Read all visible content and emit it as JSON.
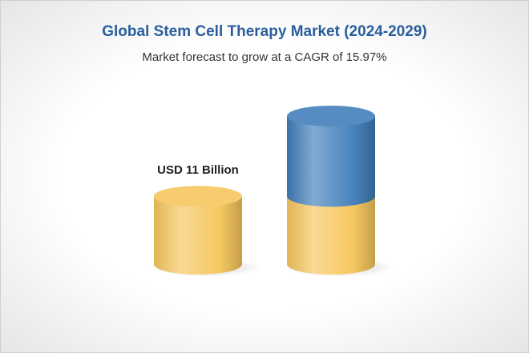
{
  "chart_data": {
    "type": "cylinder",
    "title": "Global Stem Cell Therapy Market (2024-2029)",
    "subtitle": "Market forecast to grow at a CAGR of 15.97%",
    "stacked": true,
    "categories": [
      null,
      null
    ],
    "series": [
      {
        "color": "#f5c55a",
        "values": [
          11,
          11
        ],
        "value_labels": [
          "USD 11 Billion",
          null
        ]
      },
      {
        "color": "#3f7cb9",
        "values": [
          null,
          13
        ]
      }
    ]
  }
}
